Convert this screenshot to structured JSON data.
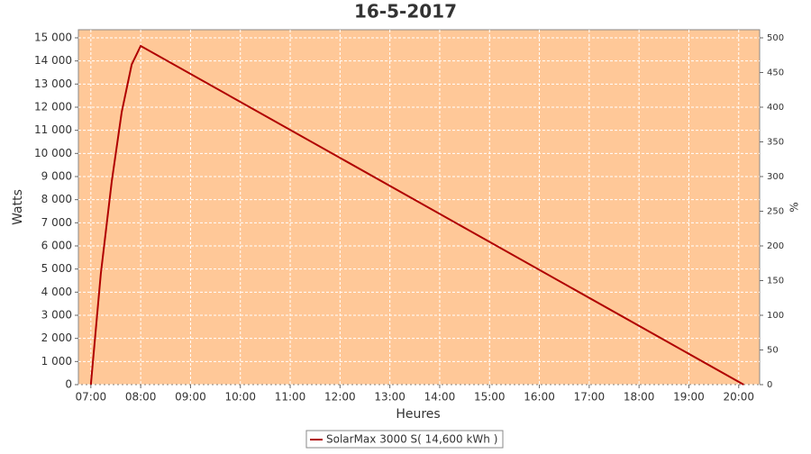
{
  "chart_data": {
    "type": "line",
    "title": "16-5-2017",
    "xlabel": "Heures",
    "ylabel": "Watts",
    "y2label": "%",
    "x": [
      7.0,
      7.2,
      7.42,
      7.62,
      7.82,
      8.0,
      20.1
    ],
    "series": [
      {
        "name": "SolarMax 3000 S( 14,600 kWh )",
        "color": "#b00000",
        "values": [
          0,
          4800,
          8800,
          11800,
          13850,
          14650,
          0
        ]
      }
    ],
    "xlim": [
      6.75,
      20.42
    ],
    "xticks": [
      {
        "value": 7,
        "label": "07:00"
      },
      {
        "value": 8,
        "label": "08:00"
      },
      {
        "value": 9,
        "label": "09:00"
      },
      {
        "value": 10,
        "label": "10:00"
      },
      {
        "value": 11,
        "label": "11:00"
      },
      {
        "value": 12,
        "label": "12:00"
      },
      {
        "value": 13,
        "label": "13:00"
      },
      {
        "value": 14,
        "label": "14:00"
      },
      {
        "value": 15,
        "label": "15:00"
      },
      {
        "value": 16,
        "label": "16:00"
      },
      {
        "value": 17,
        "label": "17:00"
      },
      {
        "value": 18,
        "label": "18:00"
      },
      {
        "value": 19,
        "label": "19:00"
      },
      {
        "value": 20,
        "label": "20:00"
      }
    ],
    "ylim": [
      0,
      15350
    ],
    "yticks": [
      0,
      {
        "value": 1000,
        "label": "1 000"
      },
      {
        "value": 2000,
        "label": "2 000"
      },
      {
        "value": 3000,
        "label": "3 000"
      },
      {
        "value": 4000,
        "label": "4 000"
      },
      {
        "value": 5000,
        "label": "5 000"
      },
      {
        "value": 6000,
        "label": "6 000"
      },
      {
        "value": 7000,
        "label": "7 000"
      },
      {
        "value": 8000,
        "label": "8 000"
      },
      {
        "value": 9000,
        "label": "9 000"
      },
      {
        "value": 10000,
        "label": "10 000"
      },
      {
        "value": 11000,
        "label": "11 000"
      },
      {
        "value": 12000,
        "label": "12 000"
      },
      {
        "value": 13000,
        "label": "13 000"
      },
      {
        "value": 14000,
        "label": "14 000"
      },
      {
        "value": 15000,
        "label": "15 000"
      }
    ],
    "y2lim": [
      0,
      511.7
    ],
    "y2ticks": [
      0,
      50,
      100,
      150,
      200,
      250,
      300,
      350,
      400,
      450,
      500
    ],
    "grid": true,
    "plot_background": "#ffc898",
    "legend": "bottom"
  }
}
